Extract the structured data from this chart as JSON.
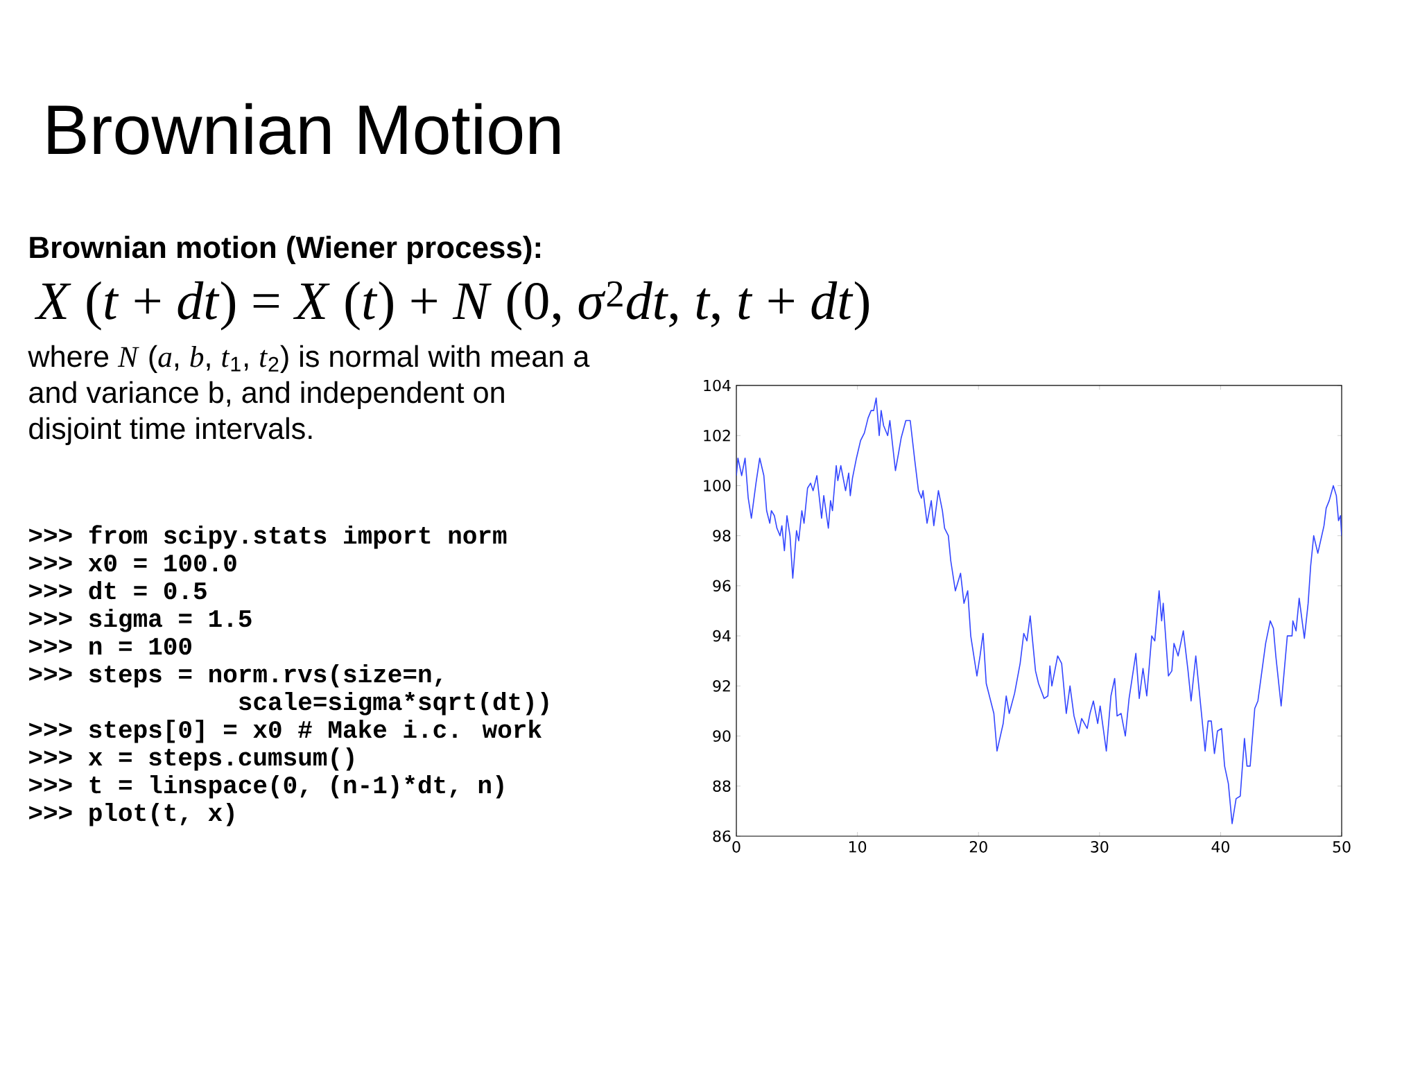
{
  "chart_data": {
    "type": "line",
    "title": "Brownian Motion",
    "subtitle": "Brownian motion (Wiener process):",
    "annotations": [
      "*X* (*t* + *dt*) = *X* (*t*) + *N* (0, *σ*$^{2}$*dt*, *t*, *t* + *dt*)",
      "where *N* (*a*, *b*, *t*$_{1}$, *t*$_{2}$) is normal with mean a",
      "and variance b, and independent on",
      "disjoint time intervals.",
      ">>> from scipy.stats import norm",
      ">>> x0 = 100.0",
      ">>> dt = 0.5",
      ">>> sigma = 1.5",
      ">>> n = 100",
      ">>> steps = norm.rvs(size=n,",
      "              scale=sigma*sqrt(dt))",
      ">>> steps[0] = x0  # Make i.c. work",
      ">>> x = steps.cumsum()",
      ">>> t = linspace(0, (n-1)*dt, n)",
      ">>> plot(t, x)"
    ],
    "x": [
      0,
      0.13,
      0.44,
      0.72,
      0.98,
      1.24,
      1.62,
      1.93,
      2.27,
      2.5,
      2.76,
      2.89,
      3.14,
      3.35,
      3.61,
      3.76,
      3.97,
      4.18,
      4.43,
      4.66,
      4.97,
      5.15,
      5.41,
      5.59,
      5.88,
      6.13,
      6.34,
      6.65,
      7.04,
      7.22,
      7.6,
      7.78,
      7.94,
      8.25,
      8.38,
      8.63,
      9.02,
      9.28,
      9.41,
      9.59,
      9.92,
      10.26,
      10.57,
      10.88,
      11.13,
      11.34,
      11.55,
      11.8,
      11.96,
      12.16,
      12.5,
      12.68,
      13.14,
      13.4,
      13.61,
      14.0,
      14.36,
      14.74,
      15.04,
      15.29,
      15.42,
      15.75,
      16.1,
      16.31,
      16.69,
      17.02,
      17.2,
      17.51,
      17.71,
      18.09,
      18.52,
      18.8,
      19.11,
      19.36,
      19.87,
      20.13,
      20.38,
      20.64,
      21.27,
      21.53,
      22.04,
      22.29,
      22.54,
      22.98,
      23.44,
      23.74,
      24.0,
      24.27,
      24.71,
      24.96,
      25.42,
      25.73,
      25.9,
      26.06,
      26.54,
      26.87,
      27.25,
      27.56,
      27.89,
      28.27,
      28.52,
      28.98,
      29.21,
      29.49,
      29.85,
      30.05,
      30.56,
      30.94,
      31.25,
      31.45,
      31.78,
      32.13,
      32.44,
      33.0,
      33.28,
      33.59,
      33.9,
      34.31,
      34.56,
      34.92,
      35.13,
      35.26,
      35.69,
      35.97,
      36.15,
      36.49,
      36.92,
      37.31,
      37.56,
      37.95,
      38.46,
      38.72,
      38.97,
      39.23,
      39.49,
      39.74,
      40.08,
      40.33,
      40.64,
      40.95,
      41.28,
      41.62,
      41.97,
      42.18,
      42.44,
      42.82,
      43.08,
      43.33,
      43.72,
      44.1,
      44.36,
      44.56,
      45.0,
      45.51,
      45.9,
      45.97,
      46.23,
      46.49,
      46.92,
      47.23,
      47.44,
      47.69,
      48.03,
      48.54,
      48.72,
      48.97,
      49.31,
      49.56,
      49.74,
      49.9,
      50.0
    ],
    "values": [
      100.4,
      101.1,
      100.4,
      101.1,
      99.5,
      98.7,
      100.1,
      101.1,
      100.4,
      99.0,
      98.5,
      99.0,
      98.8,
      98.3,
      98.0,
      98.4,
      97.4,
      98.8,
      98.0,
      96.3,
      98.2,
      97.8,
      99.0,
      98.5,
      99.9,
      100.1,
      99.8,
      100.4,
      98.7,
      99.6,
      98.3,
      99.4,
      99.0,
      100.8,
      100.2,
      100.8,
      99.8,
      100.5,
      99.6,
      100.3,
      101.1,
      101.8,
      102.1,
      102.7,
      103.0,
      103.0,
      103.5,
      102.0,
      103.0,
      102.4,
      102.0,
      102.6,
      100.6,
      101.3,
      101.9,
      102.6,
      102.6,
      101.0,
      99.8,
      99.5,
      99.8,
      98.5,
      99.4,
      98.4,
      99.8,
      99.0,
      98.3,
      98.0,
      97.0,
      95.8,
      96.5,
      95.3,
      95.8,
      94.0,
      92.4,
      93.2,
      94.1,
      92.1,
      90.9,
      89.4,
      90.5,
      91.6,
      90.9,
      91.7,
      92.9,
      94.1,
      93.8,
      94.8,
      92.6,
      92.1,
      91.5,
      91.6,
      92.8,
      92.0,
      93.2,
      92.9,
      90.9,
      92.0,
      90.8,
      90.1,
      90.7,
      90.3,
      90.9,
      91.4,
      90.5,
      91.2,
      89.4,
      91.6,
      92.3,
      90.8,
      90.9,
      90.0,
      91.5,
      93.3,
      91.5,
      92.7,
      91.6,
      94.0,
      93.8,
      95.8,
      94.6,
      95.3,
      92.4,
      92.6,
      93.7,
      93.2,
      94.2,
      92.6,
      91.4,
      93.2,
      90.7,
      89.4,
      90.6,
      90.6,
      89.3,
      90.2,
      90.3,
      88.8,
      88.1,
      86.5,
      87.5,
      87.6,
      89.9,
      88.8,
      88.8,
      91.1,
      91.4,
      92.3,
      93.7,
      94.6,
      94.3,
      93.2,
      91.2,
      94.0,
      94.0,
      94.6,
      94.2,
      95.5,
      93.9,
      95.3,
      96.8,
      98.0,
      97.3,
      98.4,
      99.1,
      99.4,
      100.0,
      99.6,
      98.6,
      98.8,
      98.0
    ],
    "color": "#3346ff",
    "xlim": [
      0,
      50
    ],
    "ylim": [
      86,
      104
    ],
    "xticks": [
      0,
      10,
      20,
      30,
      40,
      50
    ],
    "yticks": [
      86,
      88,
      90,
      92,
      94,
      96,
      98,
      100,
      102,
      104
    ]
  }
}
